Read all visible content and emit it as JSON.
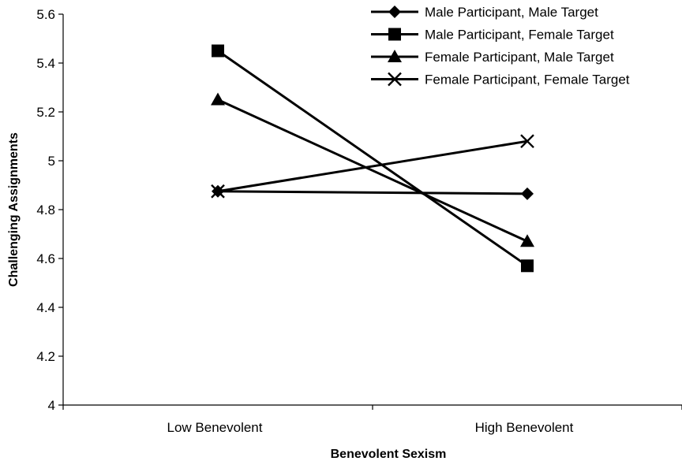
{
  "chart_data": {
    "type": "line",
    "title": "",
    "xlabel": "Benevolent Sexism",
    "ylabel": "Challenging Assignments",
    "categories": [
      "Low Benevolent",
      "High Benevolent"
    ],
    "ylim": [
      4,
      5.6
    ],
    "yticks": [
      "4",
      "4.2",
      "4.4",
      "4.6",
      "4.8",
      "5",
      "5.2",
      "5.4",
      "5.6"
    ],
    "grid": false,
    "legend_position": "top-right",
    "series": [
      {
        "name": "Male Participant, Male Target",
        "marker": "diamond",
        "color": "#000000",
        "values": [
          4.875,
          4.865
        ]
      },
      {
        "name": "Male Participant, Female Target",
        "marker": "square",
        "color": "#000000",
        "values": [
          5.45,
          4.57
        ]
      },
      {
        "name": "Female Participant, Male Target",
        "marker": "triangle",
        "color": "#000000",
        "values": [
          5.25,
          4.67
        ]
      },
      {
        "name": "Female Participant, Female Target",
        "marker": "x",
        "color": "#000000",
        "values": [
          4.875,
          5.08
        ]
      }
    ]
  }
}
